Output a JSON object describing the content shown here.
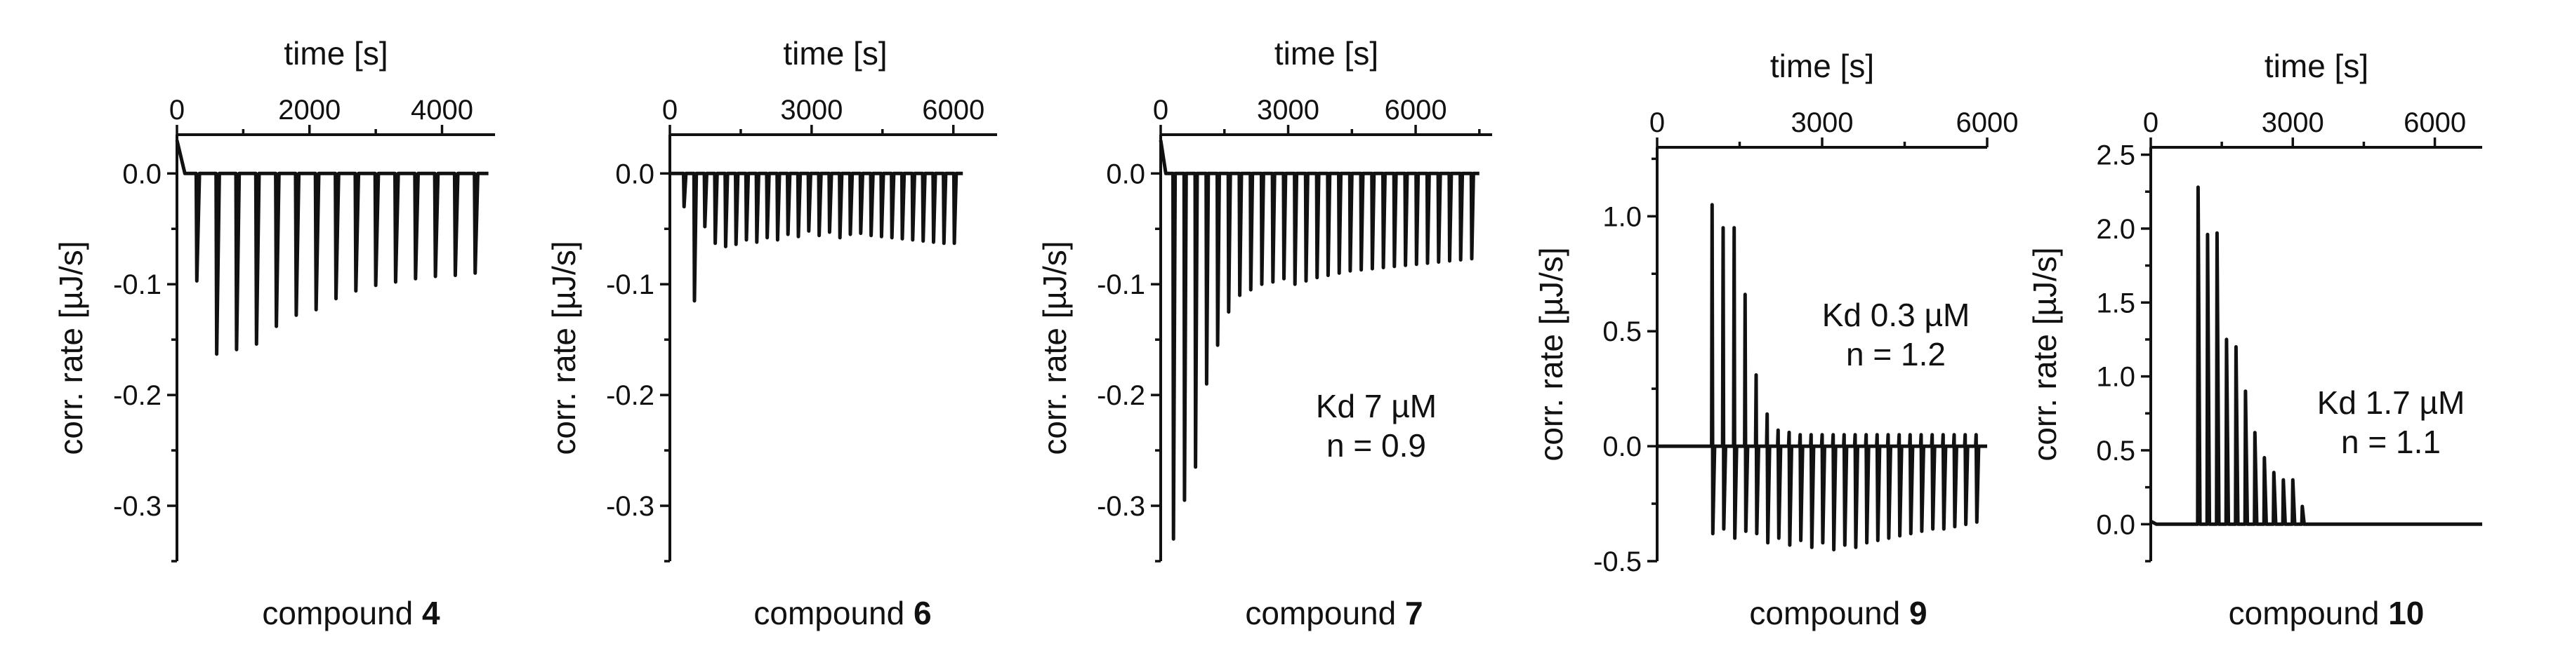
{
  "chart_data": [
    {
      "type": "line",
      "caption": {
        "prefix": "compound",
        "number": "4"
      },
      "xlabel": "time [s]",
      "ylabel": "corr. rate [µJ/s]",
      "xlim": [
        0,
        4800
      ],
      "ylim": [
        -0.35,
        0.035
      ],
      "xticks": [
        0,
        2000,
        4000
      ],
      "xtick_labels": [
        "0",
        "2000",
        "4000"
      ],
      "yticks": [
        0.0,
        -0.1,
        -0.2,
        -0.3
      ],
      "ytick_labels": [
        "0.0",
        "-0.1",
        "-0.2",
        "-0.3"
      ],
      "grid": false,
      "annotation": [],
      "trace": {
        "baseline_start": 0.03,
        "baseline": 0.0,
        "injections": {
          "t": [
            300,
            600,
            900,
            1200,
            1500,
            1800,
            2100,
            2400,
            2700,
            3000,
            3300,
            3600,
            3900,
            4200,
            4500
          ],
          "peak": [
            -0.097,
            -0.163,
            -0.159,
            -0.154,
            -0.138,
            -0.128,
            -0.123,
            -0.113,
            -0.106,
            -0.101,
            -0.098,
            -0.095,
            -0.093,
            -0.092,
            -0.09
          ]
        },
        "end": 4700
      }
    },
    {
      "type": "line",
      "caption": {
        "prefix": "compound",
        "number": "6"
      },
      "xlabel": "time [s]",
      "ylabel": "corr. rate [µJ/s]",
      "xlim": [
        0,
        7000
      ],
      "ylim": [
        -0.35,
        0.035
      ],
      "xticks": [
        0,
        3000,
        6000
      ],
      "xtick_labels": [
        "0",
        "3000",
        "6000"
      ],
      "yticks": [
        0.0,
        -0.1,
        -0.2,
        -0.3
      ],
      "ytick_labels": [
        "0.0",
        "-0.1",
        "-0.2",
        "-0.3"
      ],
      "grid": false,
      "annotation": [],
      "trace": {
        "baseline_start": 0.0,
        "baseline": 0.0,
        "injections": {
          "t": [
            300,
            520,
            740,
            960,
            1180,
            1400,
            1620,
            1840,
            2060,
            2280,
            2500,
            2720,
            2940,
            3160,
            3380,
            3600,
            3820,
            4040,
            4260,
            4480,
            4700,
            4920,
            5140,
            5360,
            5580,
            5800,
            6020
          ],
          "peak": [
            -0.03,
            -0.115,
            -0.048,
            -0.063,
            -0.066,
            -0.064,
            -0.06,
            -0.062,
            -0.058,
            -0.06,
            -0.055,
            -0.057,
            -0.052,
            -0.056,
            -0.053,
            -0.058,
            -0.055,
            -0.054,
            -0.056,
            -0.057,
            -0.058,
            -0.059,
            -0.06,
            -0.061,
            -0.062,
            -0.063,
            -0.063
          ]
        },
        "end": 6200
      }
    },
    {
      "type": "line",
      "caption": {
        "prefix": "compound",
        "number": "7"
      },
      "xlabel": "time [s]",
      "ylabel": "corr. rate [µJ/s]",
      "xlim": [
        0,
        7800
      ],
      "ylim": [
        -0.35,
        0.035
      ],
      "xticks": [
        0,
        3000,
        6000
      ],
      "xtick_labels": [
        "0",
        "3000",
        "6000"
      ],
      "yticks": [
        0.0,
        -0.1,
        -0.2,
        -0.3
      ],
      "ytick_labels": [
        "0.0",
        "-0.1",
        "-0.2",
        "-0.3"
      ],
      "grid": false,
      "annotation": [
        "Kd 7 µM",
        "n = 0.9"
      ],
      "trace": {
        "baseline_start": 0.03,
        "baseline": 0.0,
        "injections": {
          "t": [
            300,
            560,
            820,
            1080,
            1340,
            1600,
            1860,
            2120,
            2380,
            2640,
            2900,
            3160,
            3420,
            3680,
            3940,
            4200,
            4460,
            4720,
            4980,
            5240,
            5500,
            5760,
            6020,
            6280,
            6540,
            6800,
            7060,
            7320
          ],
          "peak": [
            -0.33,
            -0.295,
            -0.265,
            -0.19,
            -0.155,
            -0.125,
            -0.11,
            -0.105,
            -0.1,
            -0.098,
            -0.095,
            -0.1,
            -0.097,
            -0.094,
            -0.092,
            -0.09,
            -0.088,
            -0.087,
            -0.086,
            -0.085,
            -0.084,
            -0.083,
            -0.082,
            -0.081,
            -0.08,
            -0.079,
            -0.078,
            -0.077
          ]
        },
        "end": 7500
      }
    },
    {
      "type": "line",
      "caption": {
        "prefix": "compound",
        "number": "9"
      },
      "xlabel": "time [s]",
      "ylabel": "corr. rate [µJ/s]",
      "xlim": [
        0,
        6000
      ],
      "ylim": [
        -0.5,
        1.3
      ],
      "xticks": [
        0,
        3000,
        6000
      ],
      "xtick_labels": [
        "0",
        "3000",
        "6000"
      ],
      "yticks": [
        1.0,
        0.5,
        0.0,
        -0.5
      ],
      "ytick_labels": [
        "1.0",
        "0.5",
        "0.0",
        "-0.5"
      ],
      "grid": false,
      "annotation": [
        "Kd 0.3 µM",
        "n = 1.2"
      ],
      "trace": {
        "baseline_start": 0.0,
        "baseline": 0.0,
        "injections": {
          "t": [
            1000,
            1200,
            1400,
            1600,
            1800,
            2000,
            2200,
            2400,
            2600,
            2800,
            3000,
            3200,
            3400,
            3600,
            3800,
            4000,
            4200,
            4400,
            4600,
            4800,
            5000,
            5200,
            5400,
            5600,
            5800
          ],
          "peak": [
            1.05,
            0.95,
            0.95,
            0.66,
            0.31,
            0.14,
            0.07,
            0.06,
            0.05,
            0.05,
            0.05,
            0.05,
            0.05,
            0.05,
            0.05,
            0.05,
            0.05,
            0.05,
            0.05,
            0.05,
            0.05,
            0.05,
            0.05,
            0.05,
            0.05
          ],
          "undershoot": [
            -0.38,
            -0.36,
            -0.4,
            -0.37,
            -0.38,
            -0.42,
            -0.4,
            -0.43,
            -0.41,
            -0.44,
            -0.42,
            -0.45,
            -0.43,
            -0.44,
            -0.42,
            -0.41,
            -0.4,
            -0.39,
            -0.38,
            -0.37,
            -0.36,
            -0.36,
            -0.35,
            -0.34,
            -0.33
          ]
        },
        "end": 6000
      }
    },
    {
      "type": "line",
      "caption": {
        "prefix": "compound",
        "number": "10"
      },
      "xlabel": "time [s]",
      "ylabel": "corr. rate [µJ/s]",
      "xlim": [
        0,
        7000
      ],
      "ylim": [
        -0.25,
        2.55
      ],
      "xticks": [
        0,
        3000,
        6000
      ],
      "xtick_labels": [
        "0",
        "3000",
        "6000"
      ],
      "yticks": [
        2.5,
        2.0,
        1.5,
        1.0,
        0.5,
        0.0
      ],
      "ytick_labels": [
        "2.5",
        "2.0",
        "1.5",
        "1.0",
        "0.5",
        "0.0"
      ],
      "grid": false,
      "annotation": [
        "Kd 1.7 µM",
        "n = 1.1"
      ],
      "trace": {
        "baseline_start": 0.02,
        "baseline": 0.0,
        "injections": {
          "t": [
            1000,
            1200,
            1400,
            1600,
            1800,
            2000,
            2200,
            2400,
            2600,
            2800,
            3000,
            3200
          ],
          "peak": [
            2.28,
            1.96,
            1.97,
            1.25,
            1.2,
            0.9,
            0.62,
            0.45,
            0.35,
            0.3,
            0.3,
            0.12
          ]
        },
        "end": 7000
      }
    }
  ]
}
